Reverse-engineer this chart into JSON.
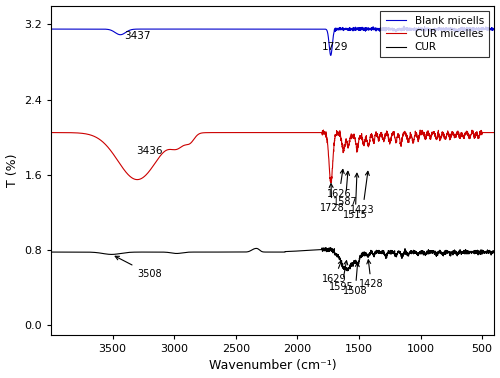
{
  "xlim": [
    4000,
    400
  ],
  "ylim": [
    -0.1,
    3.4
  ],
  "yticks": [
    0.0,
    0.8,
    1.6,
    2.4,
    3.2
  ],
  "xticks": [
    500,
    1000,
    1500,
    2000,
    2500,
    3000,
    3500
  ],
  "xlabel": "Wavenumber (cm⁻¹)",
  "ylabel": "T (%)",
  "legend_labels": [
    "Blank micells",
    "CUR micelles",
    "CUR"
  ],
  "legend_colors": [
    "#0000CC",
    "#CC0000",
    "#000000"
  ],
  "blue_baseline": 3.15,
  "red_baseline": 2.05,
  "black_baseline": 0.78
}
